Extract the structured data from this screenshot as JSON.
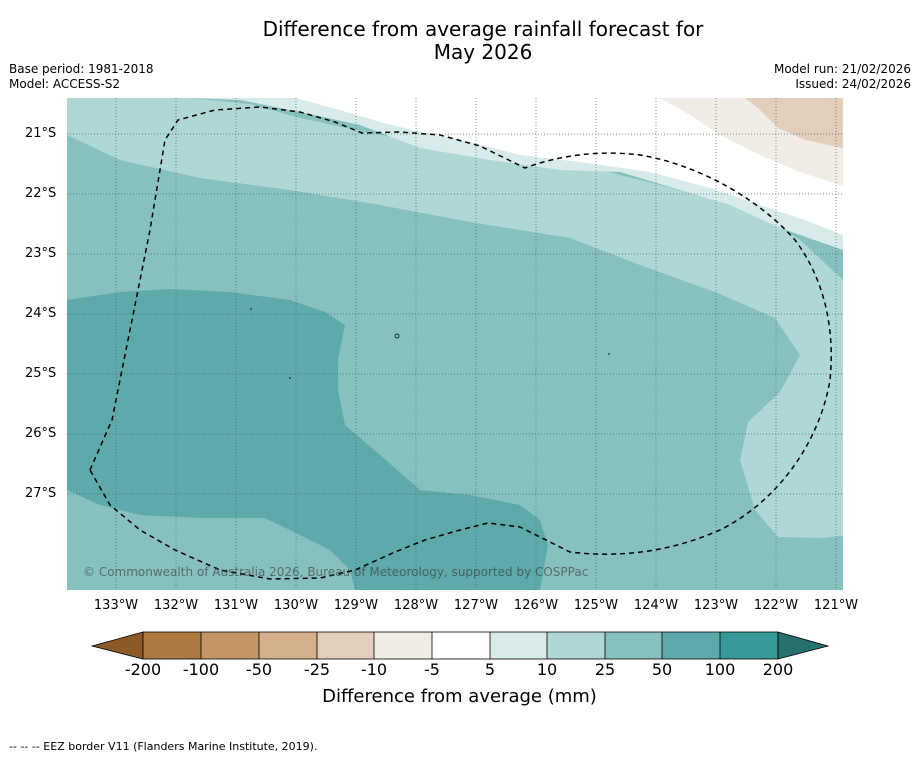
{
  "title_line1": "Difference from average rainfall forecast for",
  "title_line2": "May 2026",
  "base_period": "Base period: 1981-2018",
  "model": "Model: ACCESS-S2",
  "model_run": "Model run: 21/02/2026",
  "issued": "Issued: 24/02/2026",
  "lat_labels": [
    "21°S",
    "22°S",
    "23°S",
    "24°S",
    "25°S",
    "26°S",
    "27°S"
  ],
  "lon_labels": [
    "133°W",
    "132°W",
    "131°W",
    "130°W",
    "129°W",
    "128°W",
    "127°W",
    "126°W",
    "125°W",
    "124°W",
    "123°W",
    "122°W",
    "121°W"
  ],
  "copyright": "© Commonwealth of Australia 2026, Bureau of Meteorology, supported by COSPPac",
  "colorbar": {
    "ticks": [
      "-200",
      "-100",
      "-50",
      "-25",
      "-10",
      "-5",
      "5",
      "10",
      "25",
      "50",
      "100",
      "200"
    ],
    "label": "Difference from average (mm)",
    "colors": [
      "#8c5a26",
      "#ad7a41",
      "#c39668",
      "#d4b08c",
      "#e3cebb",
      "#f1ede6",
      "#ffffff",
      "#d6ebea",
      "#aed7d6",
      "#86c0bf",
      "#5eaaaa",
      "#379a98",
      "#26706e"
    ]
  },
  "footnote": "--  --  -- EEZ border V11 (Flanders Marine Institute, 2019)."
}
